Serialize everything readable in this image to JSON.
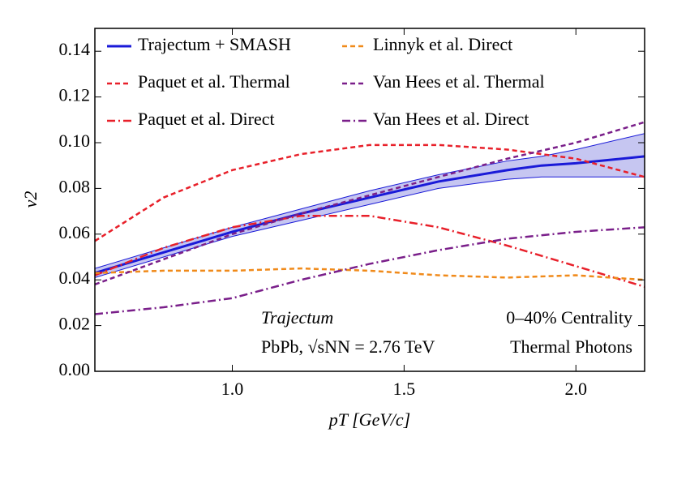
{
  "chart_data": {
    "type": "line",
    "xlabel": "pT [GeV/c]",
    "ylabel": "v2",
    "xlim": [
      0.6,
      2.2
    ],
    "ylim": [
      0,
      0.15
    ],
    "xticks": [
      {
        "value": 1.0,
        "label": "1.0"
      },
      {
        "value": 1.5,
        "label": "1.5"
      },
      {
        "value": 2.0,
        "label": "2.0"
      }
    ],
    "yticks": [
      {
        "value": 0,
        "label": "0.00"
      },
      {
        "value": 0.02,
        "label": "0.02"
      },
      {
        "value": 0.04,
        "label": "0.04"
      },
      {
        "value": 0.06,
        "label": "0.06"
      },
      {
        "value": 0.08,
        "label": "0.08"
      },
      {
        "value": 0.1,
        "label": "0.10"
      },
      {
        "value": 0.12,
        "label": "0.12"
      },
      {
        "value": 0.14,
        "label": "0.14"
      }
    ],
    "legend": "top-left",
    "series": [
      {
        "name": "Trajectum + SMASH",
        "color": "#1a1ad8",
        "style": "solid",
        "x": [
          0.6,
          0.8,
          1.0,
          1.2,
          1.4,
          1.6,
          1.8,
          1.9,
          2.0,
          2.2
        ],
        "values": [
          0.043,
          0.052,
          0.061,
          0.069,
          0.076,
          0.083,
          0.088,
          0.09,
          0.091,
          0.094
        ],
        "band": {
          "color": "#b8b8ee",
          "lower": [
            0.041,
            0.05,
            0.059,
            0.066,
            0.073,
            0.08,
            0.084,
            0.085,
            0.085,
            0.085
          ],
          "upper": [
            0.045,
            0.054,
            0.063,
            0.071,
            0.079,
            0.086,
            0.092,
            0.094,
            0.097,
            0.104
          ]
        }
      },
      {
        "name": "Paquet et al. Thermal",
        "color": "#e8202a",
        "style": "dashed",
        "x": [
          0.6,
          0.8,
          1.0,
          1.2,
          1.4,
          1.6,
          1.8,
          2.0,
          2.2
        ],
        "values": [
          0.057,
          0.076,
          0.088,
          0.095,
          0.099,
          0.099,
          0.097,
          0.093,
          0.085
        ]
      },
      {
        "name": "Paquet et al. Direct",
        "color": "#e8202a",
        "style": "dashdot",
        "x": [
          0.6,
          0.8,
          1.0,
          1.2,
          1.4,
          1.6,
          1.8,
          2.0,
          2.2
        ],
        "values": [
          0.042,
          0.054,
          0.063,
          0.068,
          0.068,
          0.063,
          0.055,
          0.046,
          0.037
        ]
      },
      {
        "name": "Linnyk et al. Direct",
        "color": "#f08a1a",
        "style": "dashed",
        "x": [
          0.6,
          0.8,
          1.0,
          1.2,
          1.4,
          1.6,
          1.8,
          2.0,
          2.2
        ],
        "values": [
          0.043,
          0.044,
          0.044,
          0.045,
          0.044,
          0.042,
          0.041,
          0.042,
          0.04
        ]
      },
      {
        "name": "Van Hees et al. Thermal",
        "color": "#7a1f8a",
        "style": "dashed",
        "x": [
          0.6,
          0.8,
          1.0,
          1.2,
          1.4,
          1.6,
          1.8,
          2.0,
          2.2
        ],
        "values": [
          0.038,
          0.049,
          0.06,
          0.069,
          0.077,
          0.085,
          0.093,
          0.1,
          0.109
        ]
      },
      {
        "name": "Van Hees et al. Direct",
        "color": "#7a1f8a",
        "style": "dashdot",
        "x": [
          0.6,
          0.8,
          0.9,
          1.0,
          1.2,
          1.4,
          1.6,
          1.8,
          2.0,
          2.2
        ],
        "values": [
          0.025,
          0.028,
          0.03,
          0.032,
          0.04,
          0.047,
          0.053,
          0.058,
          0.061,
          0.063
        ]
      }
    ],
    "annotations": [
      "Trajectum",
      "PbPb, √sNN = 2.76 TeV",
      "0–40% Centrality",
      "Thermal Photons"
    ]
  }
}
